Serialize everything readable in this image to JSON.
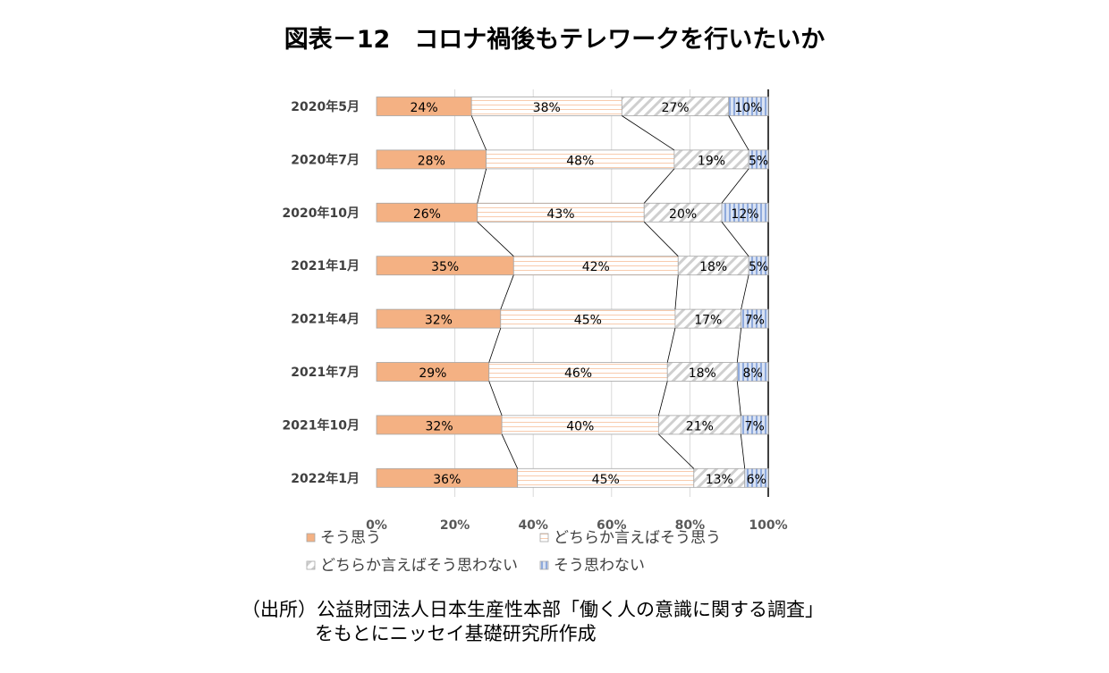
{
  "chart_data": {
    "type": "bar",
    "orientation": "horizontal-stacked-100",
    "title": "図表－12　コロナ禍後もテレワークを行いたいか",
    "categories": [
      "2020年5月",
      "2020年7月",
      "2020年10月",
      "2021年1月",
      "2021年4月",
      "2021年7月",
      "2021年10月",
      "2022年1月"
    ],
    "series": [
      {
        "name": "そう思う",
        "values": [
          24,
          28,
          26,
          35,
          32,
          29,
          32,
          36
        ],
        "color": "#F4B183",
        "pattern": "solid"
      },
      {
        "name": "どちらか言えばそう思う",
        "values": [
          38,
          48,
          43,
          42,
          45,
          46,
          40,
          45
        ],
        "color": "#F8CBAD",
        "pattern": "horizontal"
      },
      {
        "name": "どちらか言えばそう思わない",
        "values": [
          27,
          19,
          20,
          18,
          17,
          18,
          21,
          13
        ],
        "color": "#BFBFBF",
        "pattern": "diagonal"
      },
      {
        "name": "そう思わない",
        "values": [
          10,
          5,
          12,
          5,
          7,
          8,
          7,
          6
        ],
        "color": "#8FAADC",
        "pattern": "vertical"
      }
    ],
    "xticks": [
      "0%",
      "20%",
      "40%",
      "60%",
      "80%",
      "100%"
    ],
    "xlim": [
      0,
      100
    ],
    "grid": true,
    "legend_position": "bottom",
    "series_lines": true
  },
  "source": {
    "line1": "（出所）公益財団法人日本生産性本部「働く人の意識に関する調査」",
    "line2": "をもとにニッセイ基礎研究所作成"
  }
}
